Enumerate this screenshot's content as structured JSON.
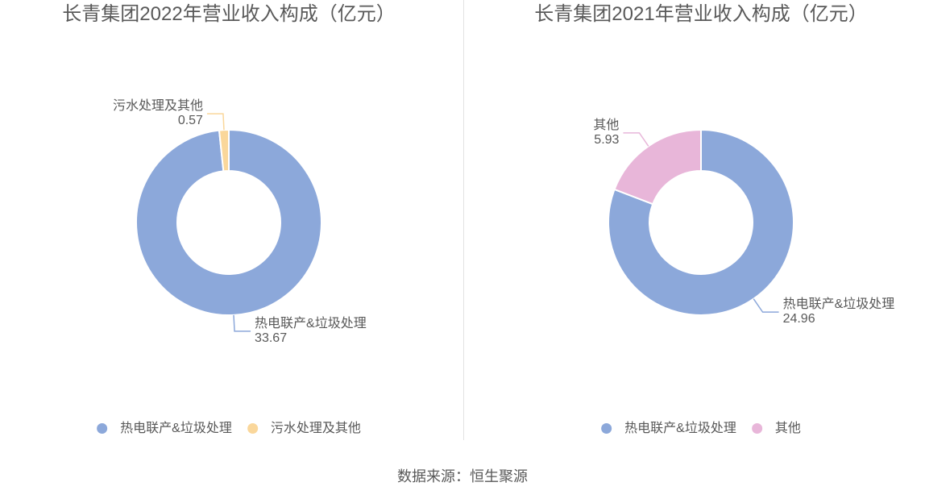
{
  "chart_data": [
    {
      "type": "pie",
      "donut": true,
      "title": "长青集团2022年营业收入构成（亿元）",
      "series": [
        {
          "name": "热电联产&垃圾处理",
          "value": 33.67,
          "label": "33.67"
        },
        {
          "name": "污水处理及其他",
          "value": 0.57,
          "label": "0.57"
        }
      ],
      "colors": [
        "#8CA8DA",
        "#FAD79B"
      ],
      "legend": [
        "热电联产&垃圾处理",
        "污水处理及其他"
      ],
      "legend_position": "bottom",
      "start_angle_deg": 0,
      "clockwise": true,
      "labels": "outside with leader lines, name and value"
    },
    {
      "type": "pie",
      "donut": true,
      "title": "长青集团2021年营业收入构成（亿元）",
      "series": [
        {
          "name": "热电联产&垃圾处理",
          "value": 24.96,
          "label": "24.96"
        },
        {
          "name": "其他",
          "value": 5.93,
          "label": "5.93"
        }
      ],
      "colors": [
        "#8CA8DA",
        "#E8B6D9"
      ],
      "legend": [
        "热电联产&垃圾处理",
        "其他"
      ],
      "legend_position": "bottom",
      "start_angle_deg": 0,
      "clockwise": true,
      "labels": "outside with leader lines, name and value"
    }
  ],
  "footer": {
    "source_label": "数据来源：恒生聚源"
  },
  "style": {
    "text_color": "#595959",
    "divider_color": "#e2e2e2",
    "background": "#ffffff"
  }
}
